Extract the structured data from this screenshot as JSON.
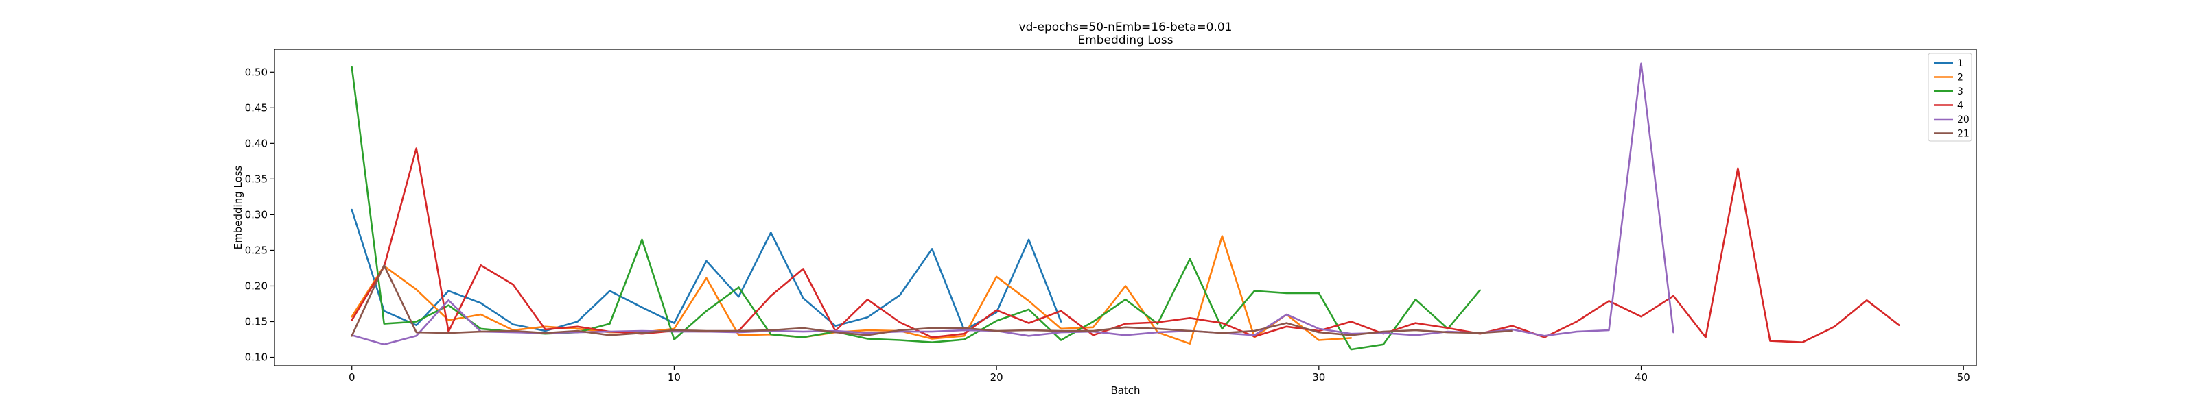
{
  "chart_data": {
    "type": "line",
    "title": "vd-epochs=50-nEmb=16-beta=0.01",
    "subtitle": "Embedding Loss",
    "xlabel": "Batch",
    "ylabel": "Embedding Loss",
    "xlim": [
      -2.4,
      50.4
    ],
    "ylim": [
      0.088,
      0.532
    ],
    "xticks": [
      0,
      10,
      20,
      30,
      40,
      50
    ],
    "yticks": [
      0.1,
      0.15,
      0.2,
      0.25,
      0.3,
      0.35,
      0.4,
      0.45,
      0.5
    ],
    "grid": false,
    "legend_position": "top-right",
    "series": [
      {
        "name": "1",
        "color": "#1f77b4",
        "x": [
          0,
          1,
          2,
          3,
          4,
          5,
          6,
          7,
          8,
          9,
          10,
          11,
          12,
          13,
          14,
          15,
          16,
          17,
          18,
          19,
          20,
          21,
          22
        ],
        "y": [
          0.307,
          0.165,
          0.145,
          0.193,
          0.176,
          0.146,
          0.137,
          0.15,
          0.193,
          0.17,
          0.148,
          0.235,
          0.185,
          0.275,
          0.183,
          0.144,
          0.156,
          0.187,
          0.252,
          0.138,
          0.163,
          0.265,
          0.15
        ]
      },
      {
        "name": "2",
        "color": "#ff7f0e",
        "x": [
          0,
          1,
          2,
          3,
          4,
          5,
          6,
          7,
          8,
          9,
          10,
          11,
          12,
          13,
          14,
          15,
          16,
          17,
          18,
          19,
          20,
          21,
          22,
          23,
          24,
          25,
          26,
          27,
          28,
          29,
          30,
          31
        ],
        "y": [
          0.157,
          0.228,
          0.195,
          0.152,
          0.16,
          0.138,
          0.143,
          0.14,
          0.135,
          0.135,
          0.14,
          0.211,
          0.131,
          0.132,
          0.128,
          0.135,
          0.138,
          0.137,
          0.126,
          0.13,
          0.213,
          0.179,
          0.14,
          0.142,
          0.2,
          0.135,
          0.119,
          0.27,
          0.128,
          0.16,
          0.124,
          0.127
        ]
      },
      {
        "name": "3",
        "color": "#2ca02c",
        "x": [
          0,
          1,
          2,
          3,
          4,
          5,
          6,
          7,
          8,
          9,
          10,
          11,
          12,
          13,
          14,
          15,
          16,
          17,
          18,
          19,
          20,
          21,
          22,
          23,
          24,
          25,
          26,
          27,
          28,
          29,
          30,
          31,
          32,
          33,
          34,
          35
        ],
        "y": [
          0.507,
          0.147,
          0.15,
          0.173,
          0.14,
          0.136,
          0.133,
          0.135,
          0.147,
          0.265,
          0.125,
          0.165,
          0.198,
          0.132,
          0.128,
          0.136,
          0.126,
          0.124,
          0.121,
          0.125,
          0.151,
          0.167,
          0.124,
          0.15,
          0.181,
          0.147,
          0.238,
          0.14,
          0.193,
          0.19,
          0.19,
          0.111,
          0.118,
          0.181,
          0.14,
          0.194
        ]
      },
      {
        "name": "4",
        "color": "#d62728",
        "x": [
          0,
          1,
          2,
          3,
          4,
          5,
          6,
          7,
          8,
          9,
          10,
          11,
          12,
          13,
          14,
          15,
          16,
          17,
          18,
          19,
          20,
          21,
          22,
          23,
          24,
          25,
          26,
          27,
          28,
          29,
          30,
          31,
          32,
          33,
          34,
          35,
          36,
          37,
          38,
          39,
          40,
          41,
          42,
          43,
          44,
          45,
          46,
          47,
          48
        ],
        "y": [
          0.152,
          0.227,
          0.393,
          0.136,
          0.229,
          0.202,
          0.139,
          0.143,
          0.136,
          0.133,
          0.137,
          0.136,
          0.137,
          0.186,
          0.224,
          0.137,
          0.181,
          0.149,
          0.128,
          0.133,
          0.166,
          0.148,
          0.165,
          0.131,
          0.147,
          0.149,
          0.155,
          0.148,
          0.129,
          0.143,
          0.137,
          0.15,
          0.133,
          0.148,
          0.141,
          0.133,
          0.144,
          0.128,
          0.15,
          0.179,
          0.157,
          0.186,
          0.128,
          0.365,
          0.123,
          0.121,
          0.143,
          0.18,
          0.145
        ]
      },
      {
        "name": "20",
        "color": "#9467bd",
        "x": [
          0,
          1,
          2,
          3,
          4,
          5,
          6,
          7,
          8,
          9,
          10,
          11,
          12,
          13,
          14,
          15,
          16,
          17,
          18,
          19,
          20,
          21,
          22,
          23,
          24,
          25,
          26,
          27,
          28,
          29,
          30,
          31,
          32,
          33,
          34,
          35,
          36,
          37,
          38,
          39,
          40,
          41
        ],
        "y": [
          0.131,
          0.118,
          0.13,
          0.18,
          0.136,
          0.135,
          0.134,
          0.135,
          0.136,
          0.137,
          0.136,
          0.136,
          0.135,
          0.137,
          0.136,
          0.137,
          0.134,
          0.136,
          0.136,
          0.138,
          0.137,
          0.13,
          0.135,
          0.136,
          0.131,
          0.135,
          0.137,
          0.134,
          0.131,
          0.16,
          0.14,
          0.133,
          0.134,
          0.131,
          0.136,
          0.134,
          0.139,
          0.13,
          0.136,
          0.138,
          0.512,
          0.135
        ]
      },
      {
        "name": "21",
        "color": "#8c564b",
        "x": [
          0,
          1,
          2,
          3,
          4,
          5,
          6,
          7,
          8,
          9,
          10,
          11,
          12,
          13,
          14,
          15,
          16,
          17,
          18,
          19,
          20,
          21,
          22,
          23,
          24,
          25,
          26,
          27,
          28,
          29,
          30,
          31,
          32,
          33,
          34,
          35,
          36
        ],
        "y": [
          0.13,
          0.229,
          0.135,
          0.134,
          0.136,
          0.137,
          0.134,
          0.137,
          0.131,
          0.134,
          0.138,
          0.137,
          0.137,
          0.138,
          0.141,
          0.135,
          0.131,
          0.138,
          0.141,
          0.141,
          0.137,
          0.138,
          0.137,
          0.137,
          0.142,
          0.14,
          0.137,
          0.134,
          0.137,
          0.148,
          0.135,
          0.131,
          0.136,
          0.138,
          0.135,
          0.134,
          0.137
        ]
      }
    ]
  }
}
